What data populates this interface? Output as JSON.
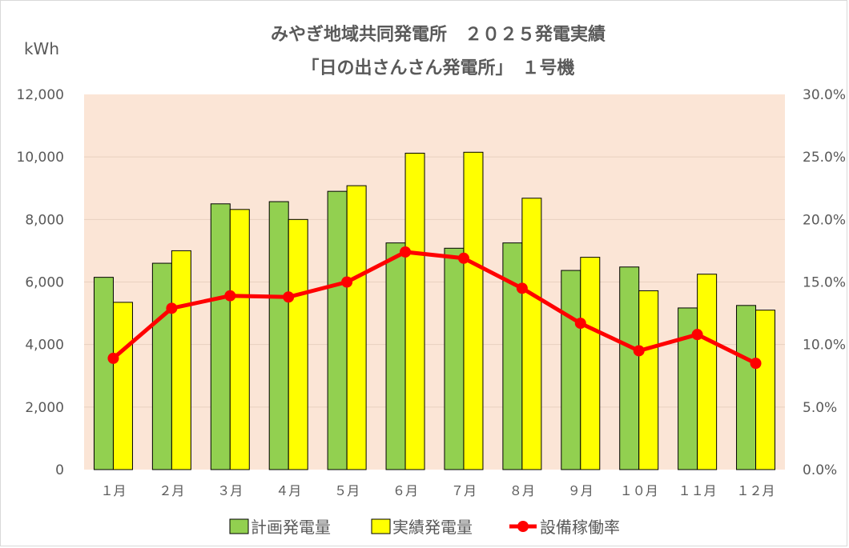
{
  "chart_data": {
    "type": "bar",
    "title": "みやぎ地域共同発電所　２０２５発電実績",
    "subtitle": "「日の出さんさん発電所」　１号機",
    "ylabel": "kWh",
    "ylim": [
      0,
      12000
    ],
    "y_ticks": [
      "0",
      "2,000",
      "4,000",
      "6,000",
      "8,000",
      "10,000",
      "12,000"
    ],
    "y2lim": [
      0,
      30
    ],
    "y2_ticks": [
      "0.0%",
      "5.0%",
      "10.0%",
      "15.0%",
      "20.0%",
      "25.0%",
      "30.0%"
    ],
    "categories": [
      "１月",
      "２月",
      "３月",
      "４月",
      "５月",
      "６月",
      "７月",
      "８月",
      "９月",
      "１０月",
      "１１月",
      "１２月"
    ],
    "series": [
      {
        "name": "計画発電量",
        "type": "bar",
        "axis": "left",
        "color": "#92d050",
        "values": [
          6150,
          6600,
          8500,
          8570,
          8900,
          7250,
          7080,
          7250,
          6370,
          6480,
          5170,
          5250
        ]
      },
      {
        "name": "実績発電量",
        "type": "bar",
        "axis": "left",
        "color": "#ffff00",
        "values": [
          5350,
          7000,
          8320,
          8000,
          9080,
          10120,
          10150,
          8680,
          6790,
          5720,
          6250,
          5100
        ]
      },
      {
        "name": "設備稼働率",
        "type": "line",
        "axis": "right",
        "color": "#ff0000",
        "values": [
          8.9,
          12.9,
          13.9,
          13.8,
          15.0,
          17.4,
          16.9,
          14.5,
          11.7,
          9.5,
          10.8,
          8.5
        ]
      }
    ],
    "grid": true,
    "legend": "bottom",
    "plot_background": "#fbe5d6"
  }
}
